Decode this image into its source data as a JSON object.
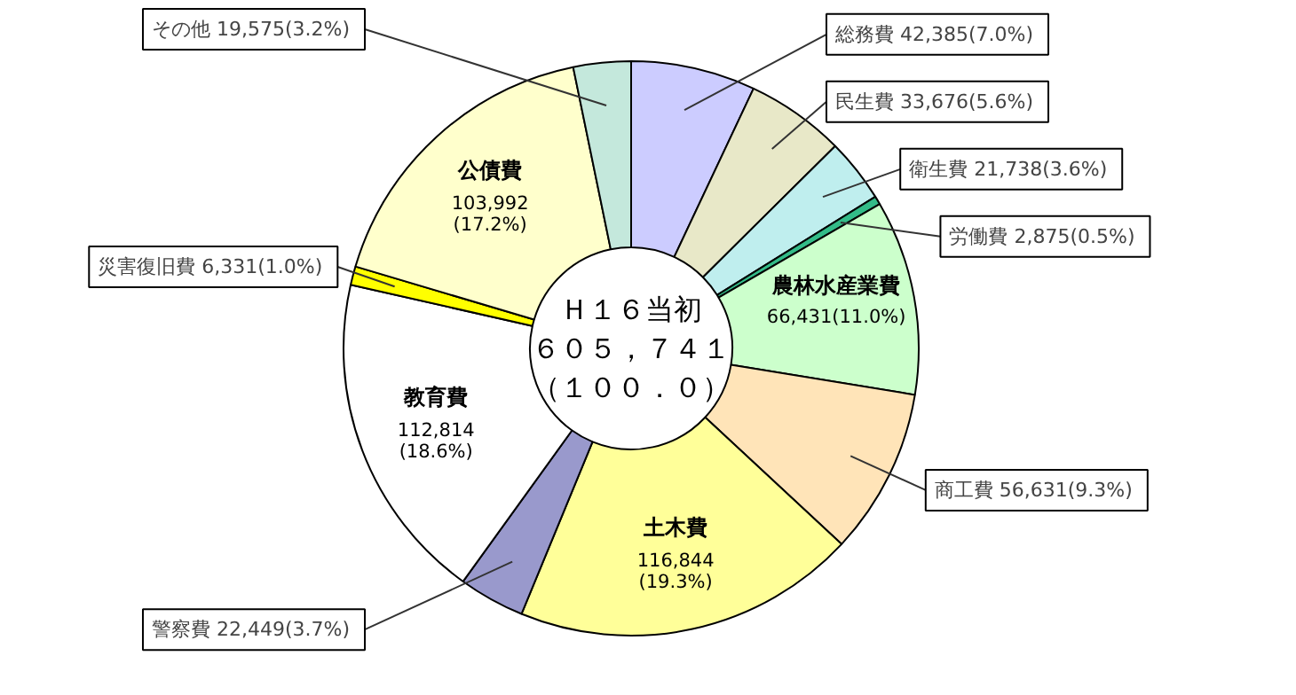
{
  "chart_data": {
    "type": "donut",
    "categories": [
      "総務費",
      "民生費",
      "衛生費",
      "労働費",
      "農林水産業費",
      "商工費",
      "土木費",
      "警察費",
      "教育費",
      "災害復旧費",
      "公債費",
      "その他"
    ],
    "values": [
      42385,
      33676,
      21738,
      2875,
      66431,
      56631,
      116844,
      22449,
      112814,
      6331,
      103992,
      19575
    ],
    "value_labels": [
      "42,385(7.0%)",
      "33,676(5.6%)",
      "21,738(3.6%)",
      "2,875(0.5%)",
      "66,431(11.0%)",
      "56,631(9.3%)",
      "116,844(19.3%)",
      "22,449(3.7%)",
      "112,814(18.6%)",
      "6,331(1.0%)",
      "103,992(17.2%)",
      "19,575(3.2%)"
    ],
    "colors": [
      "#ccccff",
      "#e8e8c8",
      "#bfeeee",
      "#33bb88",
      "#ccffcc",
      "#ffe4b8",
      "#ffff99",
      "#9999cc",
      "#ffffff",
      "#ffff00",
      "#ffffcc",
      "#c4e8dc"
    ],
    "annotations": [
      "Ｈ１６当初",
      "６０５，７４１",
      "（１００．０）"
    ]
  }
}
